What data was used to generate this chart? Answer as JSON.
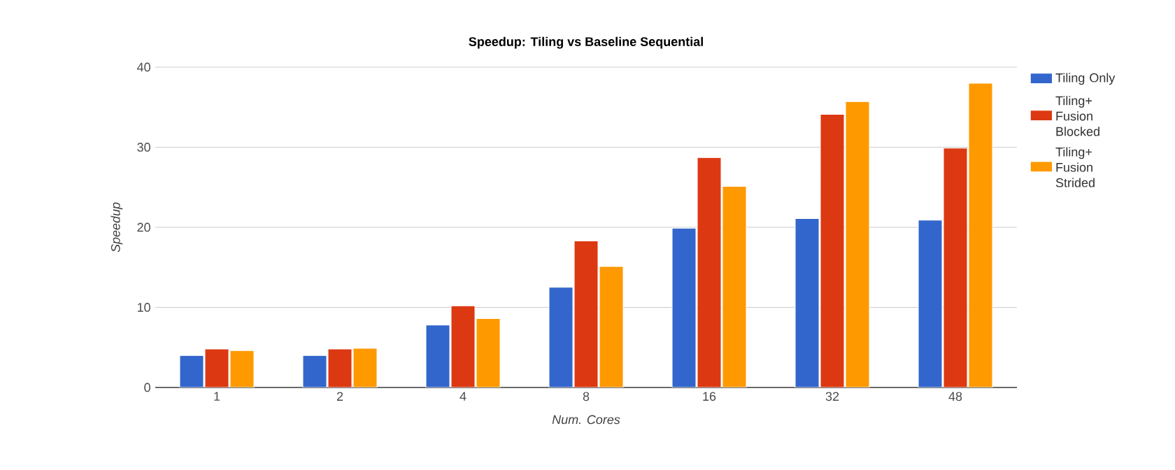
{
  "chart_data": {
    "type": "bar",
    "title": "Speedup: Tiling vs Baseline Sequential",
    "xlabel": "Num. Cores",
    "ylabel": "Speedup",
    "categories": [
      "1",
      "2",
      "4",
      "8",
      "16",
      "32",
      "48"
    ],
    "series": [
      {
        "name": "Tiling Only",
        "color": "#3366cc",
        "values": [
          4.0,
          4.0,
          7.8,
          12.5,
          19.9,
          21.1,
          20.9
        ]
      },
      {
        "name": "Tiling+ Fusion Blocked",
        "color": "#dc3912",
        "values": [
          4.8,
          4.8,
          10.2,
          18.3,
          28.7,
          34.1,
          29.9
        ]
      },
      {
        "name": "Tiling+ Fusion Strided",
        "color": "#ff9900",
        "values": [
          4.6,
          4.9,
          8.6,
          15.1,
          25.1,
          35.7,
          38.0
        ]
      }
    ],
    "ylim": [
      0,
      40
    ],
    "yticks": [
      0,
      10,
      20,
      30,
      40
    ],
    "grid": "y",
    "legend": "right"
  }
}
